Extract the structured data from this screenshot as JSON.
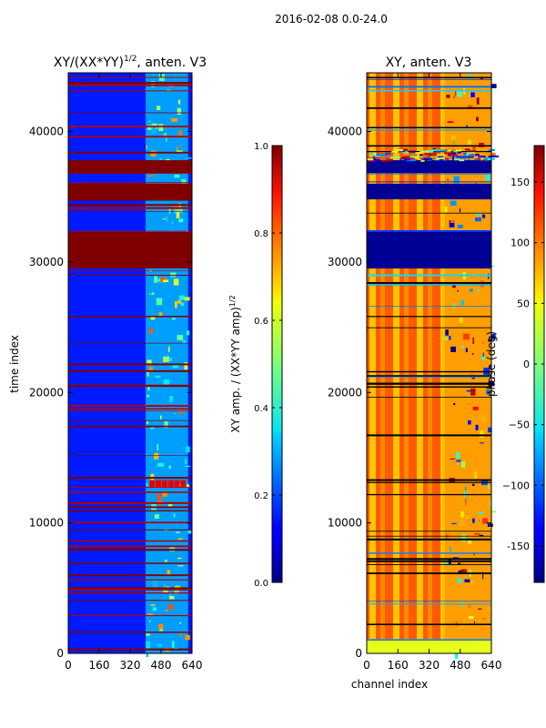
{
  "chart_data": {
    "type": "heatmap",
    "suptitle": "2016-02-08 0.0-24.0",
    "panels": [
      {
        "id": "amplitude",
        "title_main": "XY/(XX*YY)",
        "title_exp": "1/2",
        "title_rest": ", anten. V3",
        "xlabel": "",
        "ylabel": "time index",
        "xlim": [
          0,
          640
        ],
        "ylim": [
          0,
          44500
        ],
        "xticks": [
          "0",
          "160",
          "320",
          "480",
          "640"
        ],
        "yticks": [
          "0",
          "10000",
          "20000",
          "30000",
          "40000"
        ],
        "colorbar": {
          "label_main": "XY amp. / (XX*YY amp)",
          "label_exp": "1/2",
          "range": [
            0.0,
            1.0
          ],
          "ticks": [
            "0.0",
            "0.2",
            "0.4",
            "0.6",
            "0.8",
            "1.0"
          ],
          "colormap": "jet"
        },
        "features": {
          "background_value": 0.15,
          "saturated_blocks": [
            [
              29500,
              32300
            ],
            [
              34800,
              36000
            ],
            [
              36800,
              37800
            ]
          ],
          "high_value_channels": [
            400,
            620
          ],
          "hot_spot_row": 13000
        }
      },
      {
        "id": "phase",
        "title_main": "XY, anten. V3",
        "xlabel": "channel index",
        "ylabel": "",
        "xlim": [
          0,
          640
        ],
        "ylim": [
          0,
          44500
        ],
        "xticks": [
          "0",
          "160",
          "320",
          "480",
          "640"
        ],
        "yticks": [
          "0",
          "10000",
          "20000",
          "30000",
          "40000"
        ],
        "colorbar": {
          "label_main": "phase (deg)",
          "range": [
            -180,
            180
          ],
          "ticks": [
            "-150",
            "−100",
            "−50",
            "0",
            "50",
            "100",
            "150"
          ],
          "colormap": "jet"
        },
        "features": {
          "background_value_deg": 120,
          "low_value_blocks": [
            [
              29500,
              32300
            ],
            [
              34800,
              36000
            ],
            [
              36800,
              37800
            ]
          ],
          "noisy_channels": [
            400,
            640
          ]
        }
      }
    ]
  }
}
